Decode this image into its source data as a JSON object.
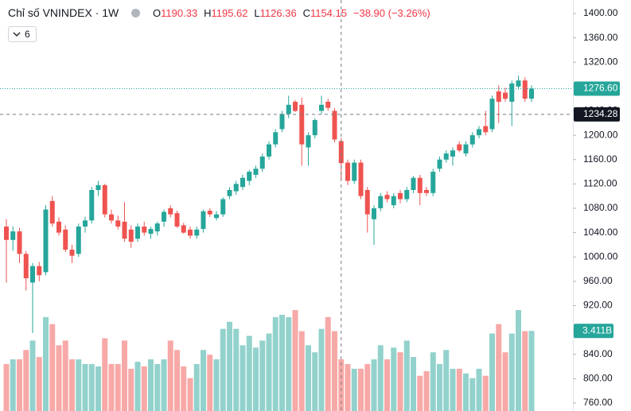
{
  "chart_data": {
    "type": "candlestick",
    "title": "Chỉ số VNINDEX",
    "interval": "1W",
    "indicator_count": 6,
    "legend_keys": [
      "O",
      "H",
      "L",
      "C"
    ],
    "change": "−38.90 (−3.26%)",
    "up_color": "#26a69a",
    "down_color": "#ef5350",
    "volume_up_color": "#93d2cc",
    "volume_down_color": "#f7a9a7",
    "grid": false,
    "ylim": [
      746.9,
      1422.2
    ],
    "yticks": [
      {
        "value": 760,
        "label": "760.00"
      },
      {
        "value": 800,
        "label": "800.00"
      },
      {
        "value": 840,
        "label": "840.00"
      },
      {
        "value": 880,
        "label": "880.00"
      },
      {
        "value": 920,
        "label": "920.00"
      },
      {
        "value": 960,
        "label": "960.00"
      },
      {
        "value": 1000,
        "label": "1000.00"
      },
      {
        "value": 1040,
        "label": "1040.00"
      },
      {
        "value": 1080,
        "label": "1080.00"
      },
      {
        "value": 1120,
        "label": "1120.00"
      },
      {
        "value": 1160,
        "label": "1160.00"
      },
      {
        "value": 1200,
        "label": "1200.00"
      },
      {
        "value": 1240,
        "label": "1240.00"
      },
      {
        "value": 1280,
        "label": "1280.00"
      },
      {
        "value": 1320,
        "label": "1320.00"
      },
      {
        "value": 1360,
        "label": "1360.00"
      },
      {
        "value": 1400,
        "label": "1400.00"
      }
    ],
    "open": [
      1050,
      1028,
      1042,
      1005,
      958,
      985,
      975,
      1092,
      1058,
      1045,
      1012,
      1005,
      1050,
      1060,
      1110,
      1118,
      1070,
      1060,
      1058,
      1045,
      1030,
      1050,
      1038,
      1042,
      1058,
      1080,
      1072,
      1052,
      1045,
      1035,
      1046,
      1076,
      1064,
      1070,
      1100,
      1108,
      1115,
      1125,
      1135,
      1145,
      1165,
      1185,
      1210,
      1235,
      1255,
      1250,
      1180,
      1200,
      1240,
      1255,
      1240,
      1190.33,
      1155,
      1125,
      1155,
      1110,
      1062,
      1080,
      1102,
      1085,
      1105,
      1095,
      1110,
      1130,
      1110,
      1105,
      1145,
      1160,
      1165,
      1185,
      1170,
      1185,
      1200,
      1215,
      1210,
      1272,
      1270,
      1255,
      1280,
      1290,
      1260
    ],
    "high": [
      1062,
      1050,
      1048,
      1010,
      990,
      992,
      1085,
      1100,
      1065,
      1052,
      1020,
      1055,
      1066,
      1115,
      1125,
      1120,
      1078,
      1068,
      1090,
      1052,
      1055,
      1058,
      1050,
      1058,
      1078,
      1085,
      1076,
      1056,
      1050,
      1050,
      1078,
      1080,
      1075,
      1098,
      1115,
      1125,
      1135,
      1143,
      1150,
      1170,
      1190,
      1210,
      1240,
      1265,
      1258,
      1262,
      1205,
      1228,
      1265,
      1260,
      1245,
      1195.62,
      1160,
      1160,
      1160,
      1115,
      1085,
      1105,
      1108,
      1105,
      1110,
      1115,
      1133,
      1135,
      1115,
      1145,
      1165,
      1175,
      1180,
      1190,
      1190,
      1205,
      1215,
      1240,
      1265,
      1282,
      1278,
      1290,
      1298,
      1295,
      1282
    ],
    "low": [
      958,
      1010,
      990,
      945,
      875,
      960,
      970,
      1050,
      1035,
      1008,
      990,
      1000,
      1040,
      1055,
      1100,
      1065,
      1055,
      1045,
      1025,
      1015,
      1025,
      1035,
      1030,
      1035,
      1050,
      1065,
      1048,
      1038,
      1030,
      1030,
      1040,
      1066,
      1060,
      1066,
      1095,
      1102,
      1110,
      1118,
      1130,
      1140,
      1160,
      1180,
      1205,
      1228,
      1238,
      1150,
      1150,
      1195,
      1235,
      1240,
      1188,
      1126.36,
      1118,
      1120,
      1095,
      1040,
      1020,
      1075,
      1090,
      1080,
      1088,
      1090,
      1105,
      1085,
      1100,
      1100,
      1140,
      1155,
      1150,
      1172,
      1165,
      1180,
      1195,
      1200,
      1205,
      1220,
      1255,
      1215,
      1275,
      1255,
      1255
    ],
    "close": [
      1028,
      1042,
      1005,
      965,
      985,
      970,
      1078,
      1055,
      1040,
      1012,
      1002,
      1050,
      1060,
      1110,
      1118,
      1070,
      1060,
      1050,
      1030,
      1025,
      1050,
      1040,
      1046,
      1055,
      1074,
      1070,
      1050,
      1040,
      1035,
      1045,
      1075,
      1070,
      1070,
      1095,
      1110,
      1120,
      1130,
      1140,
      1145,
      1165,
      1185,
      1205,
      1235,
      1250,
      1240,
      1185,
      1200,
      1225,
      1250,
      1245,
      1193.05,
      1154.15,
      1125,
      1155,
      1100,
      1070,
      1080,
      1100,
      1095,
      1100,
      1095,
      1110,
      1130,
      1105,
      1105,
      1140,
      1160,
      1170,
      1175,
      1175,
      1185,
      1200,
      1210,
      1205,
      1260,
      1255,
      1260,
      1285,
      1290,
      1260,
      1276.6
    ],
    "volume": [
      2.0,
      2.2,
      2.2,
      2.6,
      3.0,
      2.3,
      4.0,
      3.7,
      2.8,
      3.0,
      2.2,
      2.2,
      2.0,
      2.0,
      1.9,
      3.1,
      2.0,
      2.0,
      3.0,
      1.8,
      2.1,
      1.9,
      2.2,
      2.0,
      2.2,
      3.0,
      2.6,
      1.9,
      1.4,
      2.0,
      2.6,
      2.4,
      2.2,
      3.5,
      3.8,
      3.5,
      2.8,
      3.2,
      2.7,
      3.0,
      3.3,
      4.0,
      4.1,
      4.0,
      4.3,
      3.4,
      2.8,
      2.5,
      3.5,
      4.0,
      3.4,
      2.2,
      2.0,
      1.8,
      1.8,
      2.0,
      2.2,
      2.8,
      2.2,
      2.7,
      2.5,
      3.0,
      2.3,
      1.5,
      1.7,
      2.5,
      2.0,
      2.6,
      1.8,
      1.8,
      1.6,
      1.4,
      1.8,
      1.5,
      3.3,
      3.7,
      2.5,
      3.3,
      4.3,
      3.4,
      3.411
    ],
    "last_volume_label": "3.411B",
    "last_price_label": "1276.60",
    "crosshair_price": 1234.28
  }
}
